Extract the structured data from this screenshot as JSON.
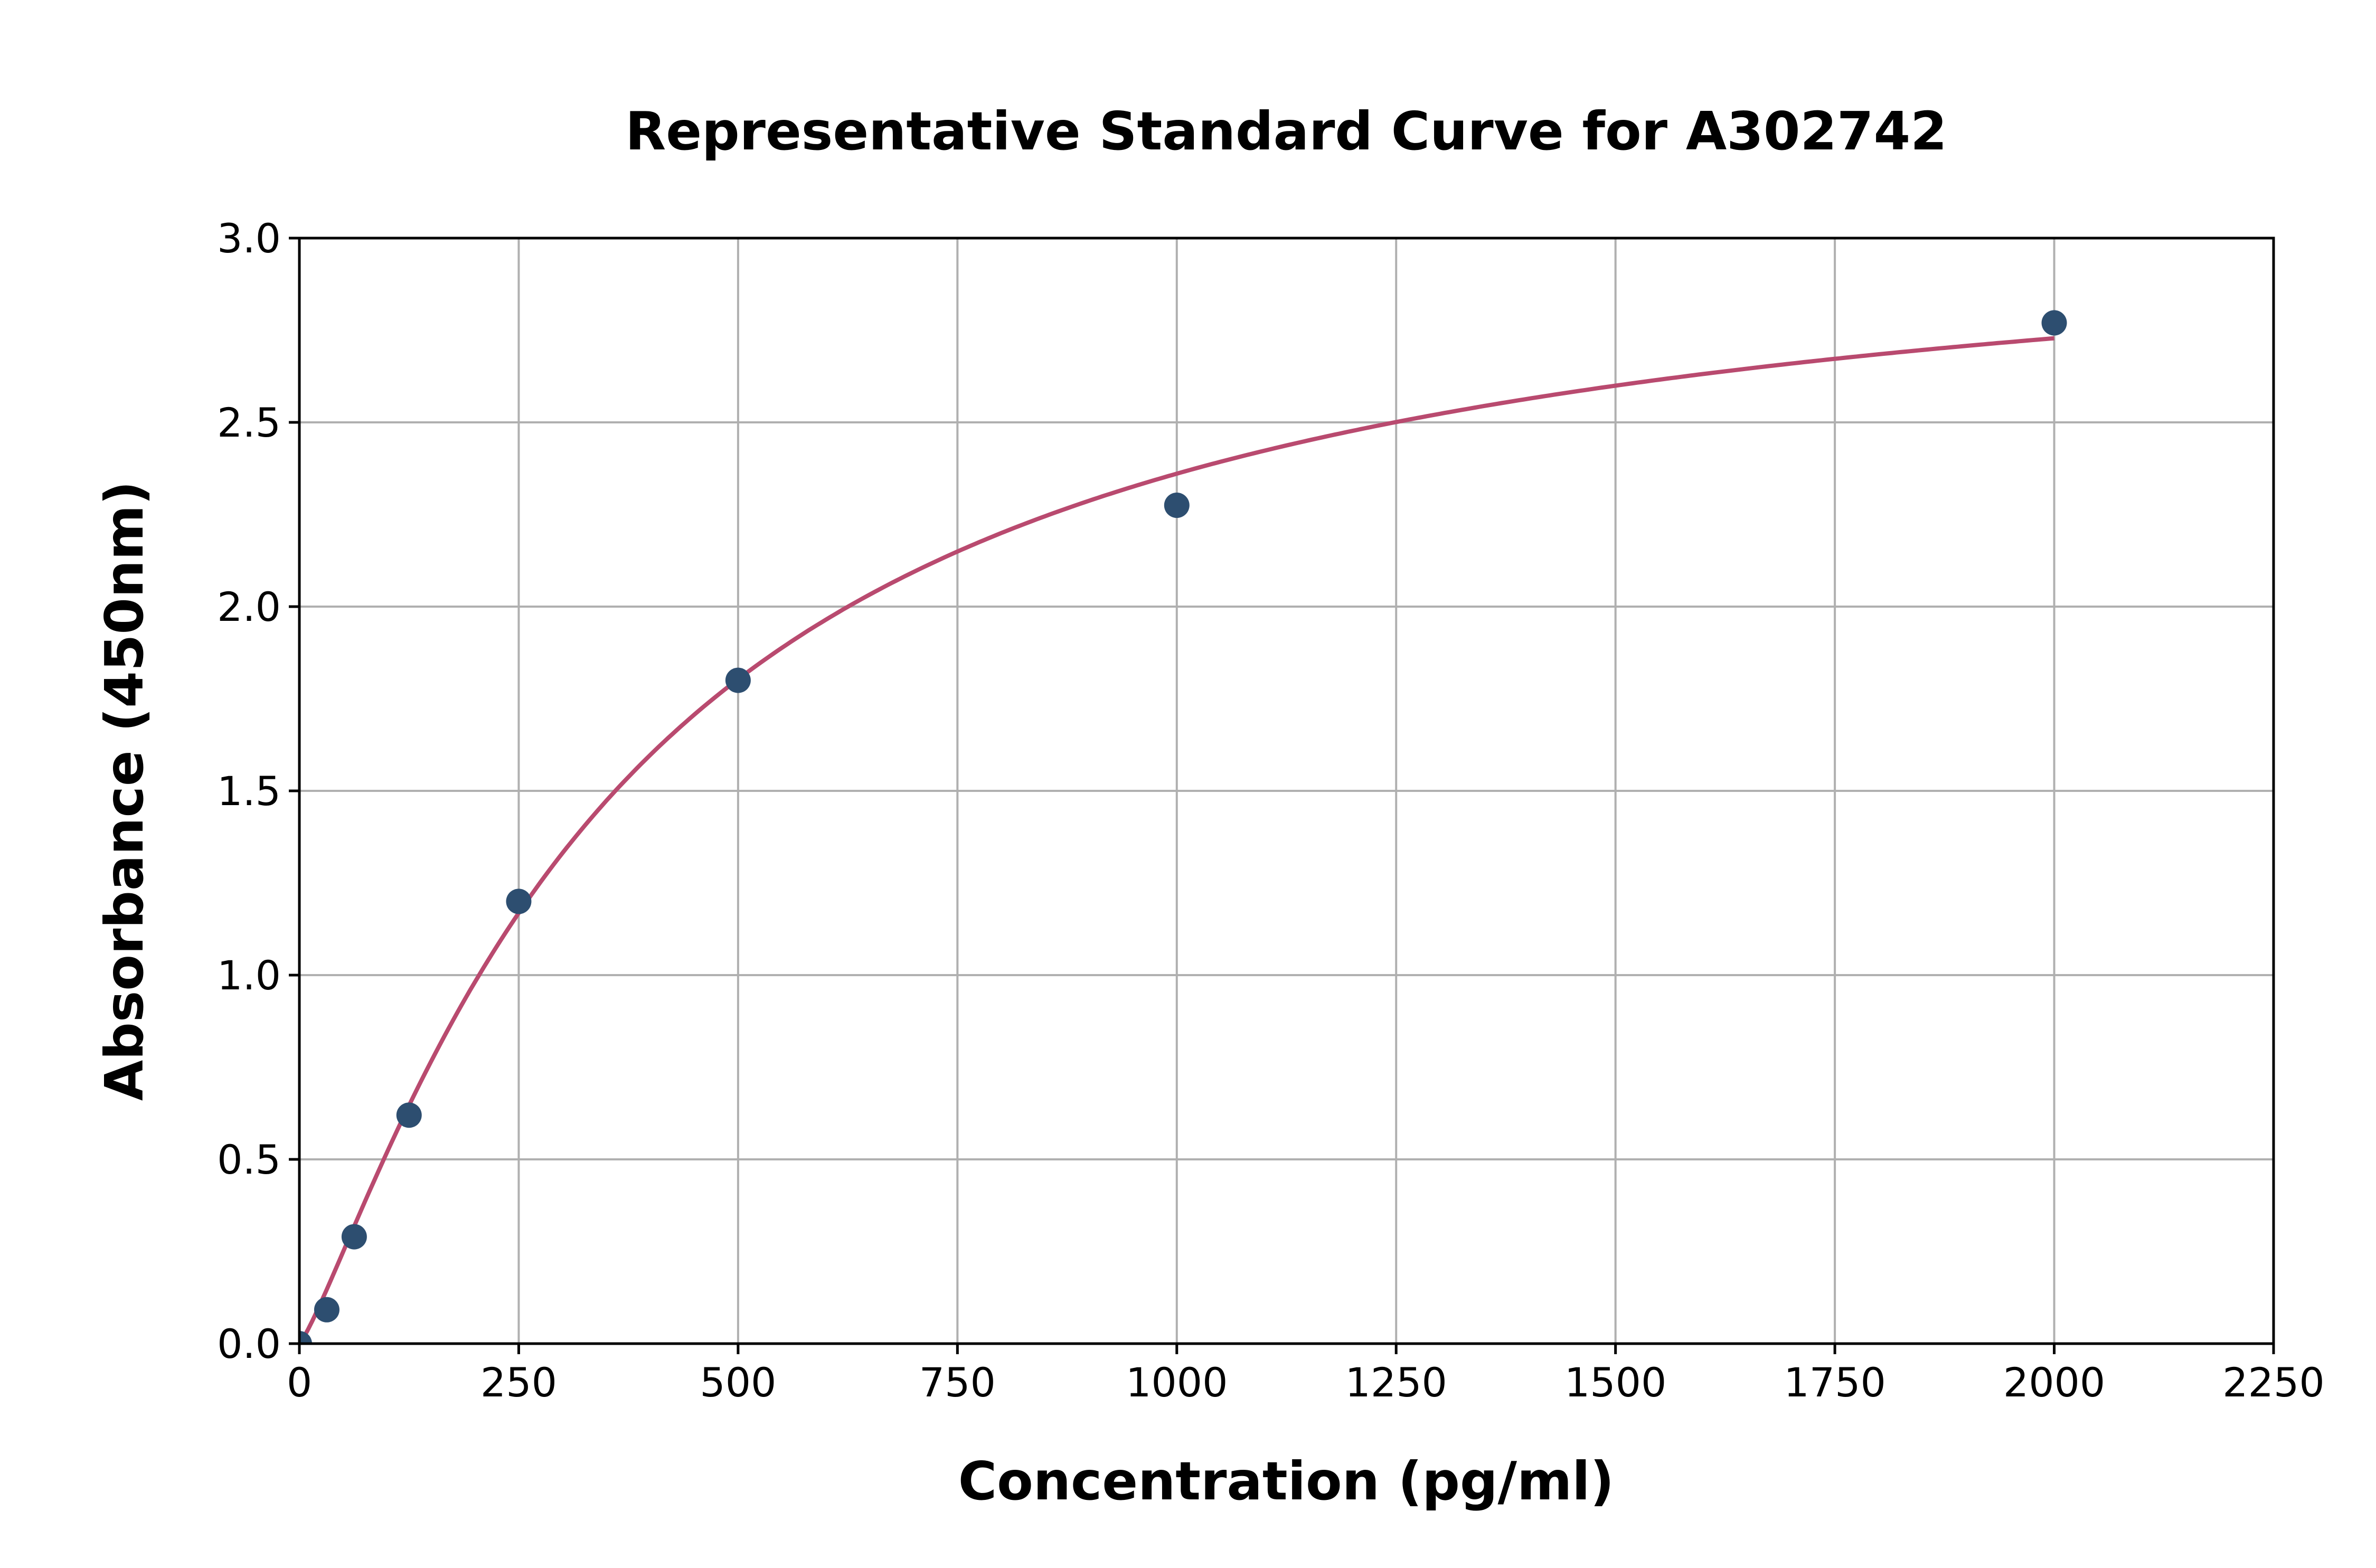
{
  "chart_data": {
    "type": "scatter",
    "title": "Representative Standard Curve for A302742",
    "xlabel": "Concentration (pg/ml)",
    "ylabel": "Absorbance (450nm)",
    "xlim": [
      0,
      2250
    ],
    "ylim": [
      0,
      3.0
    ],
    "xticks": [
      "0",
      "250",
      "500",
      "750",
      "1000",
      "1250",
      "1500",
      "1750",
      "2000",
      "2250"
    ],
    "yticks": [
      "0.0",
      "0.5",
      "1.0",
      "1.5",
      "2.0",
      "2.5",
      "3.0"
    ],
    "grid": true,
    "points": {
      "x": [
        0,
        31.25,
        62.5,
        125,
        250,
        500,
        1000,
        2000
      ],
      "y": [
        0.0,
        0.092,
        0.29,
        0.62,
        1.2,
        1.8,
        2.275,
        2.77
      ]
    },
    "fit_curve": {
      "model": "4PL",
      "x_range": [
        0,
        2000
      ],
      "a": 0,
      "b": 1.2,
      "c": 380,
      "d": 3.1
    },
    "colors": {
      "points": "#2d4e70",
      "curve": "#b94a6f",
      "grid": "#b0b0b0"
    }
  }
}
